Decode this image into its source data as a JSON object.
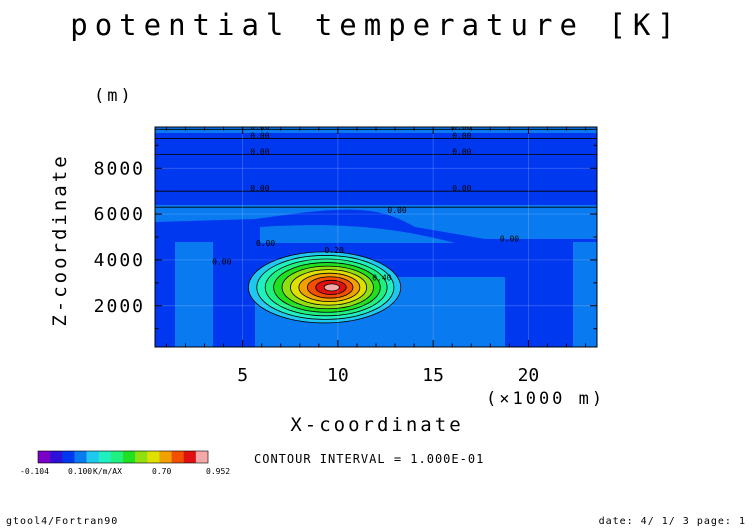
{
  "header": {
    "title": "potential temperature [K]"
  },
  "axes": {
    "y_unit": "(m)",
    "y_label": "Z-coordinate",
    "x_label": "X-coordinate",
    "x_unit": "(×1000 m)"
  },
  "contour_interval_text": "CONTOUR INTERVAL = 1.000E-01",
  "footer": {
    "left": "gtool4/Fortran90",
    "right": "date: 4/ 1/ 3 page: 1"
  },
  "colorbar": {
    "colors": [
      "#7b00c8",
      "#2f10d8",
      "#0038f0",
      "#0a7af0",
      "#20c8f0",
      "#20f0c0",
      "#20f080",
      "#20e020",
      "#90e010",
      "#e0e000",
      "#f0a000",
      "#f05000",
      "#e01010",
      "#f4a8a8"
    ],
    "labels": [
      "-0.104",
      "0.100",
      "K/m/AX",
      "0.70",
      "0.952"
    ]
  },
  "chart_data": {
    "type": "heatmap",
    "title": "potential temperature [K]",
    "xlabel": "X-coordinate",
    "ylabel": "Z-coordinate",
    "x_unit": "(×1000 m)",
    "y_unit": "(m)",
    "xlim": [
      0.4,
      23.6
    ],
    "ylim": [
      200,
      9800
    ],
    "x_ticks": [
      5,
      10,
      15,
      20
    ],
    "y_ticks": [
      2000,
      4000,
      6000,
      8000
    ],
    "grid": true,
    "value_range": [
      -0.104,
      0.952
    ],
    "contour_interval": 0.1,
    "contour_labels": [
      {
        "x": 5.4,
        "y": 9700,
        "text": "0.00"
      },
      {
        "x": 5.4,
        "y": 9300,
        "text": "0.00"
      },
      {
        "x": 5.4,
        "y": 8600,
        "text": "0.00"
      },
      {
        "x": 5.4,
        "y": 7000,
        "text": "0.00"
      },
      {
        "x": 16.0,
        "y": 9700,
        "text": "0.00"
      },
      {
        "x": 16.0,
        "y": 9300,
        "text": "0.00"
      },
      {
        "x": 16.0,
        "y": 8600,
        "text": "0.00"
      },
      {
        "x": 16.0,
        "y": 7000,
        "text": "0.00"
      },
      {
        "x": 12.6,
        "y": 6050,
        "text": "0.00"
      },
      {
        "x": 18.5,
        "y": 4800,
        "text": "0.00"
      },
      {
        "x": 5.7,
        "y": 4600,
        "text": "0.00"
      },
      {
        "x": 3.4,
        "y": 3800,
        "text": "0.00"
      },
      {
        "x": 9.3,
        "y": 4300,
        "text": "0.20"
      },
      {
        "x": 11.8,
        "y": 3100,
        "text": "0.40"
      }
    ],
    "bubble": {
      "center_x": 9.3,
      "center_y": 2800,
      "radius_x": 4.0,
      "radius_y": 1550,
      "peak": 0.952
    }
  }
}
